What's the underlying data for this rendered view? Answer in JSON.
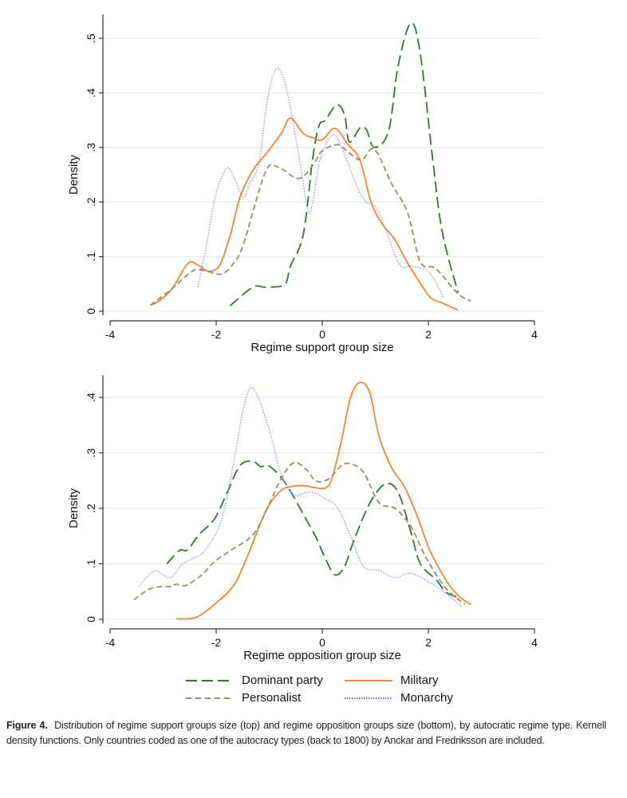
{
  "colors": {
    "dominant_party": "#2a7a2a",
    "military": "#f0852d",
    "personalist": "#9c8a62",
    "monarchy": "#8a8af0",
    "monarchy_legend": "#3a3acc",
    "grid": "#e4eef2"
  },
  "legend": {
    "items": [
      {
        "label": "Dominant party",
        "key": "dominant_party",
        "style": "long-dash"
      },
      {
        "label": "Military",
        "key": "military",
        "style": "solid"
      },
      {
        "label": "Personalist",
        "key": "personalist",
        "style": "short-dash"
      },
      {
        "label": "Monarchy",
        "key": "monarchy",
        "style": "dotted"
      }
    ]
  },
  "caption": {
    "label": "Figure 4.",
    "text": "Distribution of regime support groups size (top) and regime opposition groups size (bottom), by autocratic regime type. Kernell density functions. Only countries coded as one of the autocracy types (back to 1800) by Anckar and Fredriksson are included."
  },
  "chart_data": [
    {
      "type": "line",
      "xlabel": "Regime support group size",
      "ylabel": "Density",
      "xlim": [
        -4,
        4
      ],
      "ylim": [
        0,
        0.53
      ],
      "xticks": [
        "-4",
        "-2",
        "0",
        "2",
        "4"
      ],
      "xtick_values": [
        -4,
        -2,
        0,
        2,
        4
      ],
      "yticks": [
        "0",
        ".1",
        ".2",
        ".3",
        ".4",
        ".5"
      ],
      "ytick_values": [
        0,
        0.1,
        0.2,
        0.3,
        0.4,
        0.5
      ],
      "grid": true,
      "series": [
        {
          "name": "Dominant party",
          "key": "dominant_party",
          "x": [
            -1.74,
            -1.31,
            -1.07,
            -0.71,
            -0.6,
            -0.36,
            -0.18,
            -0.06,
            0.06,
            0.27,
            0.42,
            0.51,
            0.71,
            0.83,
            0.98,
            1.25,
            1.43,
            1.67,
            1.85,
            2.08,
            2.26,
            2.56
          ],
          "y": [
            0.01,
            0.044,
            0.044,
            0.049,
            0.083,
            0.14,
            0.28,
            0.34,
            0.35,
            0.378,
            0.36,
            0.31,
            0.336,
            0.333,
            0.3,
            0.33,
            0.45,
            0.528,
            0.47,
            0.28,
            0.146,
            0.034
          ]
        },
        {
          "name": "Military",
          "key": "military",
          "x": [
            -3.24,
            -3.1,
            -2.83,
            -2.53,
            -2.32,
            -2.14,
            -1.93,
            -1.73,
            -1.55,
            -1.31,
            -1.07,
            -0.77,
            -0.6,
            -0.36,
            -0.18,
            0,
            0.24,
            0.48,
            0.71,
            0.92,
            1.13,
            1.37,
            1.61,
            1.85,
            2.05,
            2.26,
            2.56
          ],
          "y": [
            0.012,
            0.017,
            0.041,
            0.088,
            0.083,
            0.073,
            0.085,
            0.141,
            0.209,
            0.258,
            0.287,
            0.326,
            0.354,
            0.326,
            0.318,
            0.314,
            0.335,
            0.306,
            0.277,
            0.2,
            0.16,
            0.131,
            0.088,
            0.051,
            0.024,
            0.015,
            0.002
          ]
        },
        {
          "name": "Personalist",
          "key": "personalist",
          "x": [
            -3.24,
            -2.86,
            -2.44,
            -2.2,
            -1.9,
            -1.67,
            -1.49,
            -1.07,
            -0.83,
            -0.45,
            -0.18,
            0,
            0.3,
            0.48,
            0.74,
            0.98,
            1.31,
            1.61,
            1.85,
            2.14,
            2.56,
            2.8
          ],
          "y": [
            0.011,
            0.039,
            0.074,
            0.074,
            0.068,
            0.088,
            0.122,
            0.255,
            0.264,
            0.243,
            0.267,
            0.294,
            0.305,
            0.292,
            0.277,
            0.297,
            0.233,
            0.18,
            0.09,
            0.078,
            0.032,
            0.019
          ]
        },
        {
          "name": "Monarchy",
          "key": "monarchy",
          "x": [
            -2.35,
            -2.2,
            -2.02,
            -1.82,
            -1.7,
            -1.49,
            -1.37,
            -1.19,
            -1.04,
            -0.86,
            -0.68,
            -0.48,
            -0.27,
            -0.18,
            -0.03,
            0.21,
            0.42,
            0.65,
            0.83,
            1.01,
            1.19,
            1.46,
            1.67,
            1.96,
            2.11,
            2.29
          ],
          "y": [
            0.044,
            0.112,
            0.209,
            0.26,
            0.253,
            0.209,
            0.233,
            0.272,
            0.384,
            0.445,
            0.409,
            0.306,
            0.187,
            0.2,
            0.282,
            0.323,
            0.287,
            0.229,
            0.2,
            0.19,
            0.151,
            0.085,
            0.083,
            0.075,
            0.058,
            0.024
          ]
        }
      ]
    },
    {
      "type": "line",
      "xlabel": "Regime opposition group size",
      "ylabel": "Density",
      "xlim": [
        -4,
        4
      ],
      "ylim": [
        0,
        0.44
      ],
      "xticks": [
        "-4",
        "-2",
        "0",
        "2",
        "4"
      ],
      "xtick_values": [
        -4,
        -2,
        0,
        2,
        4
      ],
      "yticks": [
        "0",
        ".1",
        ".2",
        ".3",
        ".4"
      ],
      "ytick_values": [
        0,
        0.1,
        0.2,
        0.3,
        0.4
      ],
      "grid": true,
      "series": [
        {
          "name": "Dominant party",
          "key": "dominant_party",
          "x": [
            -2.93,
            -2.69,
            -2.54,
            -2.33,
            -2.03,
            -1.79,
            -1.55,
            -1.31,
            -1.16,
            -1.01,
            -0.72,
            -0.42,
            -0.12,
            0.06,
            0.24,
            0.42,
            0.6,
            0.9,
            1.19,
            1.43,
            1.67,
            1.85,
            2.15,
            2.33,
            2.57
          ],
          "y": [
            0.1,
            0.124,
            0.125,
            0.152,
            0.181,
            0.229,
            0.277,
            0.285,
            0.275,
            0.277,
            0.249,
            0.2,
            0.148,
            0.109,
            0.08,
            0.095,
            0.143,
            0.21,
            0.244,
            0.229,
            0.157,
            0.1,
            0.071,
            0.049,
            0.039
          ]
        },
        {
          "name": "Military",
          "key": "military",
          "x": [
            -2.75,
            -2.39,
            -2.03,
            -1.67,
            -1.43,
            -1.19,
            -1.01,
            -0.78,
            -0.6,
            -0.36,
            -0.12,
            0.06,
            0.18,
            0.36,
            0.54,
            0.72,
            0.9,
            1.07,
            1.31,
            1.55,
            1.79,
            2.03,
            2.33,
            2.57,
            2.81
          ],
          "y": [
            0.001,
            0.003,
            0.027,
            0.061,
            0.109,
            0.167,
            0.205,
            0.232,
            0.239,
            0.241,
            0.237,
            0.237,
            0.253,
            0.321,
            0.402,
            0.427,
            0.407,
            0.33,
            0.273,
            0.239,
            0.186,
            0.124,
            0.071,
            0.042,
            0.026
          ]
        },
        {
          "name": "Personalist",
          "key": "personalist",
          "x": [
            -3.55,
            -3.22,
            -2.87,
            -2.75,
            -2.57,
            -2.27,
            -2.03,
            -1.73,
            -1.31,
            -1.01,
            -0.78,
            -0.54,
            -0.3,
            -0.12,
            0.12,
            0.36,
            0.54,
            0.78,
            1.07,
            1.37,
            1.67,
            1.97,
            2.33,
            2.69
          ],
          "y": [
            0.035,
            0.056,
            0.059,
            0.063,
            0.061,
            0.08,
            0.104,
            0.124,
            0.152,
            0.205,
            0.253,
            0.282,
            0.27,
            0.249,
            0.253,
            0.277,
            0.28,
            0.265,
            0.21,
            0.2,
            0.167,
            0.109,
            0.056,
            0.027
          ]
        },
        {
          "name": "Monarchy",
          "key": "monarchy",
          "x": [
            -3.46,
            -3.16,
            -2.87,
            -2.63,
            -2.39,
            -2.21,
            -1.91,
            -1.67,
            -1.49,
            -1.31,
            -1.01,
            -0.78,
            -0.54,
            -0.3,
            -0.12,
            0.06,
            0.3,
            0.54,
            0.78,
            1.07,
            1.37,
            1.67,
            2.03,
            2.27,
            2.63
          ],
          "y": [
            0.059,
            0.087,
            0.075,
            0.1,
            0.112,
            0.124,
            0.176,
            0.282,
            0.378,
            0.417,
            0.345,
            0.263,
            0.225,
            0.229,
            0.227,
            0.217,
            0.2,
            0.148,
            0.095,
            0.088,
            0.075,
            0.083,
            0.066,
            0.051,
            0.023
          ]
        }
      ]
    }
  ]
}
